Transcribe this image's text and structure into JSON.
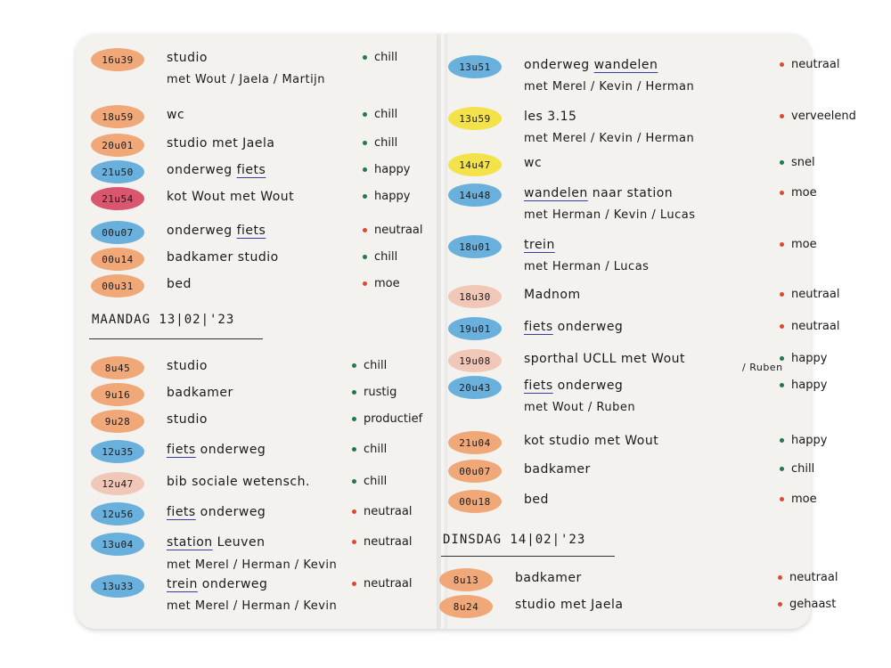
{
  "colors": {
    "orange": "#f0a878",
    "blue": "#6ab0dc",
    "yellow": "#f3e24a",
    "red": "#d9566e",
    "pink": "#f1c7b8",
    "green_dot": "#1d7a4c",
    "red_dot": "#e0482e"
  },
  "left_top": [
    {
      "time": "16u39",
      "color": "orange",
      "activity": "studio",
      "with": "met Wout / Jaela / Martijn",
      "mood": "chill",
      "dot": "green_dot"
    },
    {
      "time": "18u59",
      "color": "orange",
      "activity": "wc",
      "mood": "chill",
      "dot": "green_dot"
    },
    {
      "time": "20u01",
      "color": "orange",
      "activity": "studio met Jaela",
      "mood": "chill",
      "dot": "green_dot"
    },
    {
      "time": "21u50",
      "color": "blue",
      "activity": "onderweg",
      "act_ul": "fiets",
      "mood": "happy",
      "dot": "green_dot"
    },
    {
      "time": "21u54",
      "color": "red",
      "activity": "kot Wout met Wout",
      "mood": "happy",
      "dot": "green_dot"
    },
    {
      "time": "00u07",
      "color": "blue",
      "activity": "onderweg",
      "act_ul": "fiets",
      "mood": "neutraal",
      "dot": "red_dot"
    },
    {
      "time": "00u14",
      "color": "orange",
      "activity": "badkamer studio",
      "mood": "chill",
      "dot": "green_dot"
    },
    {
      "time": "00u31",
      "color": "orange",
      "activity": "bed",
      "mood": "moe",
      "dot": "red_dot"
    }
  ],
  "heading_left": "MAANDAG 13|02|'23",
  "left_bottom": [
    {
      "time": "8u45",
      "color": "orange",
      "activity": "studio",
      "mood": "chill",
      "dot": "green_dot"
    },
    {
      "time": "9u16",
      "color": "orange",
      "activity": "badkamer",
      "mood": "rustig",
      "dot": "green_dot"
    },
    {
      "time": "9u28",
      "color": "orange",
      "activity": "studio",
      "mood": "productief",
      "dot": "green_dot"
    },
    {
      "time": "12u35",
      "color": "blue",
      "act_ul": "fiets",
      "activity2": "onderweg",
      "mood": "chill",
      "dot": "green_dot"
    },
    {
      "time": "12u47",
      "color": "pink",
      "activity": "bib sociale wetensch.",
      "mood": "chill",
      "dot": "green_dot"
    },
    {
      "time": "12u56",
      "color": "blue",
      "act_ul": "fiets",
      "activity2": "onderweg",
      "mood": "neutraal",
      "dot": "red_dot"
    },
    {
      "time": "13u04",
      "color": "blue",
      "act_ul": "station",
      "activity2": "Leuven",
      "mood": "neutraal",
      "dot": "red_dot"
    },
    {
      "time": "13u33",
      "color": "blue",
      "pre_with": "met Merel / Herman / Kevin",
      "act_ul": "trein",
      "activity2": "onderweg",
      "with": "met Merel / Herman / Kevin",
      "mood": "neutraal",
      "dot": "red_dot"
    }
  ],
  "right_top": [
    {
      "time": "13u51",
      "color": "blue",
      "activity": "onderweg",
      "act_ul2": "wandelen",
      "with": "met Merel / Kevin / Herman",
      "mood": "neutraal",
      "dot": "red_dot"
    },
    {
      "time": "13u59",
      "color": "yellow",
      "activity": "les 3.15",
      "with": "met Merel / Kevin / Herman",
      "mood": "verveelend",
      "dot": "red_dot"
    },
    {
      "time": "14u47",
      "color": "yellow",
      "activity": "wc",
      "mood": "snel",
      "dot": "green_dot"
    },
    {
      "time": "14u48",
      "color": "blue",
      "act_ul": "wandelen",
      "activity2": "naar station",
      "with": "met Herman / Kevin / Lucas",
      "mood": "moe",
      "dot": "red_dot"
    },
    {
      "time": "18u01",
      "color": "blue",
      "act_ul": "trein",
      "with": "met Herman / Lucas",
      "mood": "moe",
      "dot": "red_dot"
    },
    {
      "time": "18u30",
      "color": "pink",
      "activity": "Madnom",
      "mood": "neutraal",
      "dot": "red_dot"
    },
    {
      "time": "19u01",
      "color": "blue",
      "act_ul": "fiets",
      "activity2": "onderweg",
      "mood": "neutraal",
      "dot": "red_dot"
    },
    {
      "time": "19u08",
      "color": "pink",
      "activity": "sporthal UCLL met Wout",
      "sub": "/ Ruben",
      "mood": "happy",
      "dot": "green_dot"
    },
    {
      "time": "20u43",
      "color": "blue",
      "act_ul": "fiets",
      "activity2": "onderweg",
      "with": "met Wout / Ruben",
      "mood": "happy",
      "dot": "green_dot"
    },
    {
      "time": "21u04",
      "color": "orange",
      "activity": "kot studio met Wout",
      "mood": "happy",
      "dot": "green_dot"
    },
    {
      "time": "00u07",
      "color": "orange",
      "activity": "badkamer",
      "mood": "chill",
      "dot": "green_dot"
    },
    {
      "time": "00u18",
      "color": "orange",
      "activity": "bed",
      "mood": "moe",
      "dot": "red_dot"
    }
  ],
  "heading_right": "DINSDAG 14|02|'23",
  "right_bottom": [
    {
      "time": "8u13",
      "color": "orange",
      "activity": "badkamer",
      "mood": "neutraal",
      "dot": "red_dot"
    },
    {
      "time": "8u24",
      "color": "orange",
      "activity": "studio met Jaela",
      "mood": "gehaast",
      "dot": "red_dot"
    }
  ]
}
